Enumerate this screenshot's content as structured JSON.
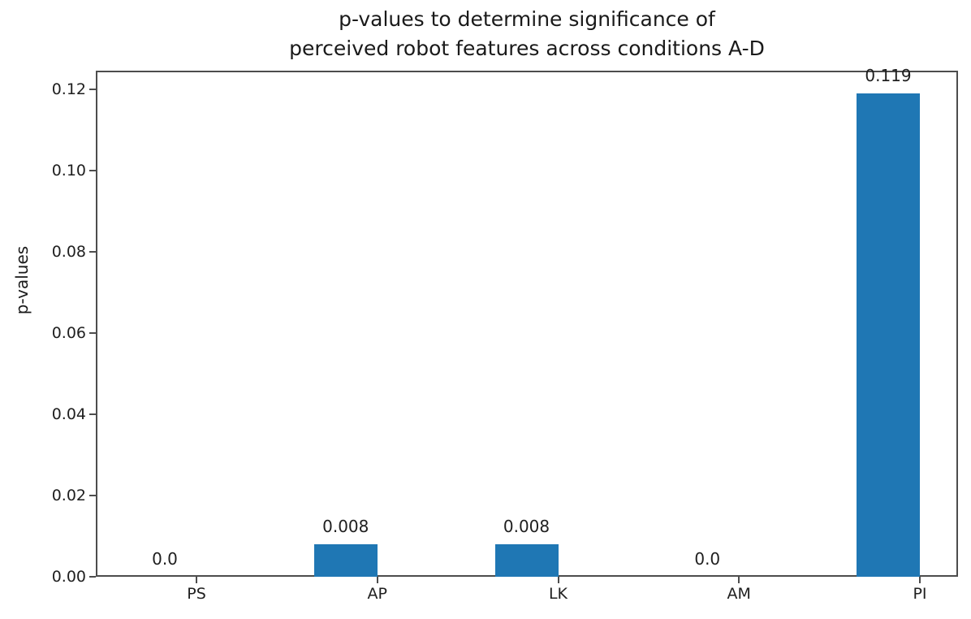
{
  "chart_data": {
    "type": "bar",
    "title": "p-values to determine significance of\nperceived robot features across conditions A-D",
    "xlabel": "",
    "ylabel": "p-values",
    "categories": [
      "PS",
      "AP",
      "LK",
      "AM",
      "PI"
    ],
    "values": [
      0.0,
      0.008,
      0.008,
      0.0,
      0.119
    ],
    "bar_labels": [
      "0.0",
      "0.008",
      "0.008",
      "0.0",
      "0.119"
    ],
    "yticks": [
      0.0,
      0.02,
      0.04,
      0.06,
      0.08,
      0.1,
      0.12
    ],
    "ytick_labels": [
      "0.00",
      "0.02",
      "0.04",
      "0.06",
      "0.08",
      "0.10",
      "0.12"
    ],
    "ylim": [
      0,
      0.1246
    ],
    "bar_color": "#1f77b4",
    "grid": false,
    "legend": null
  }
}
